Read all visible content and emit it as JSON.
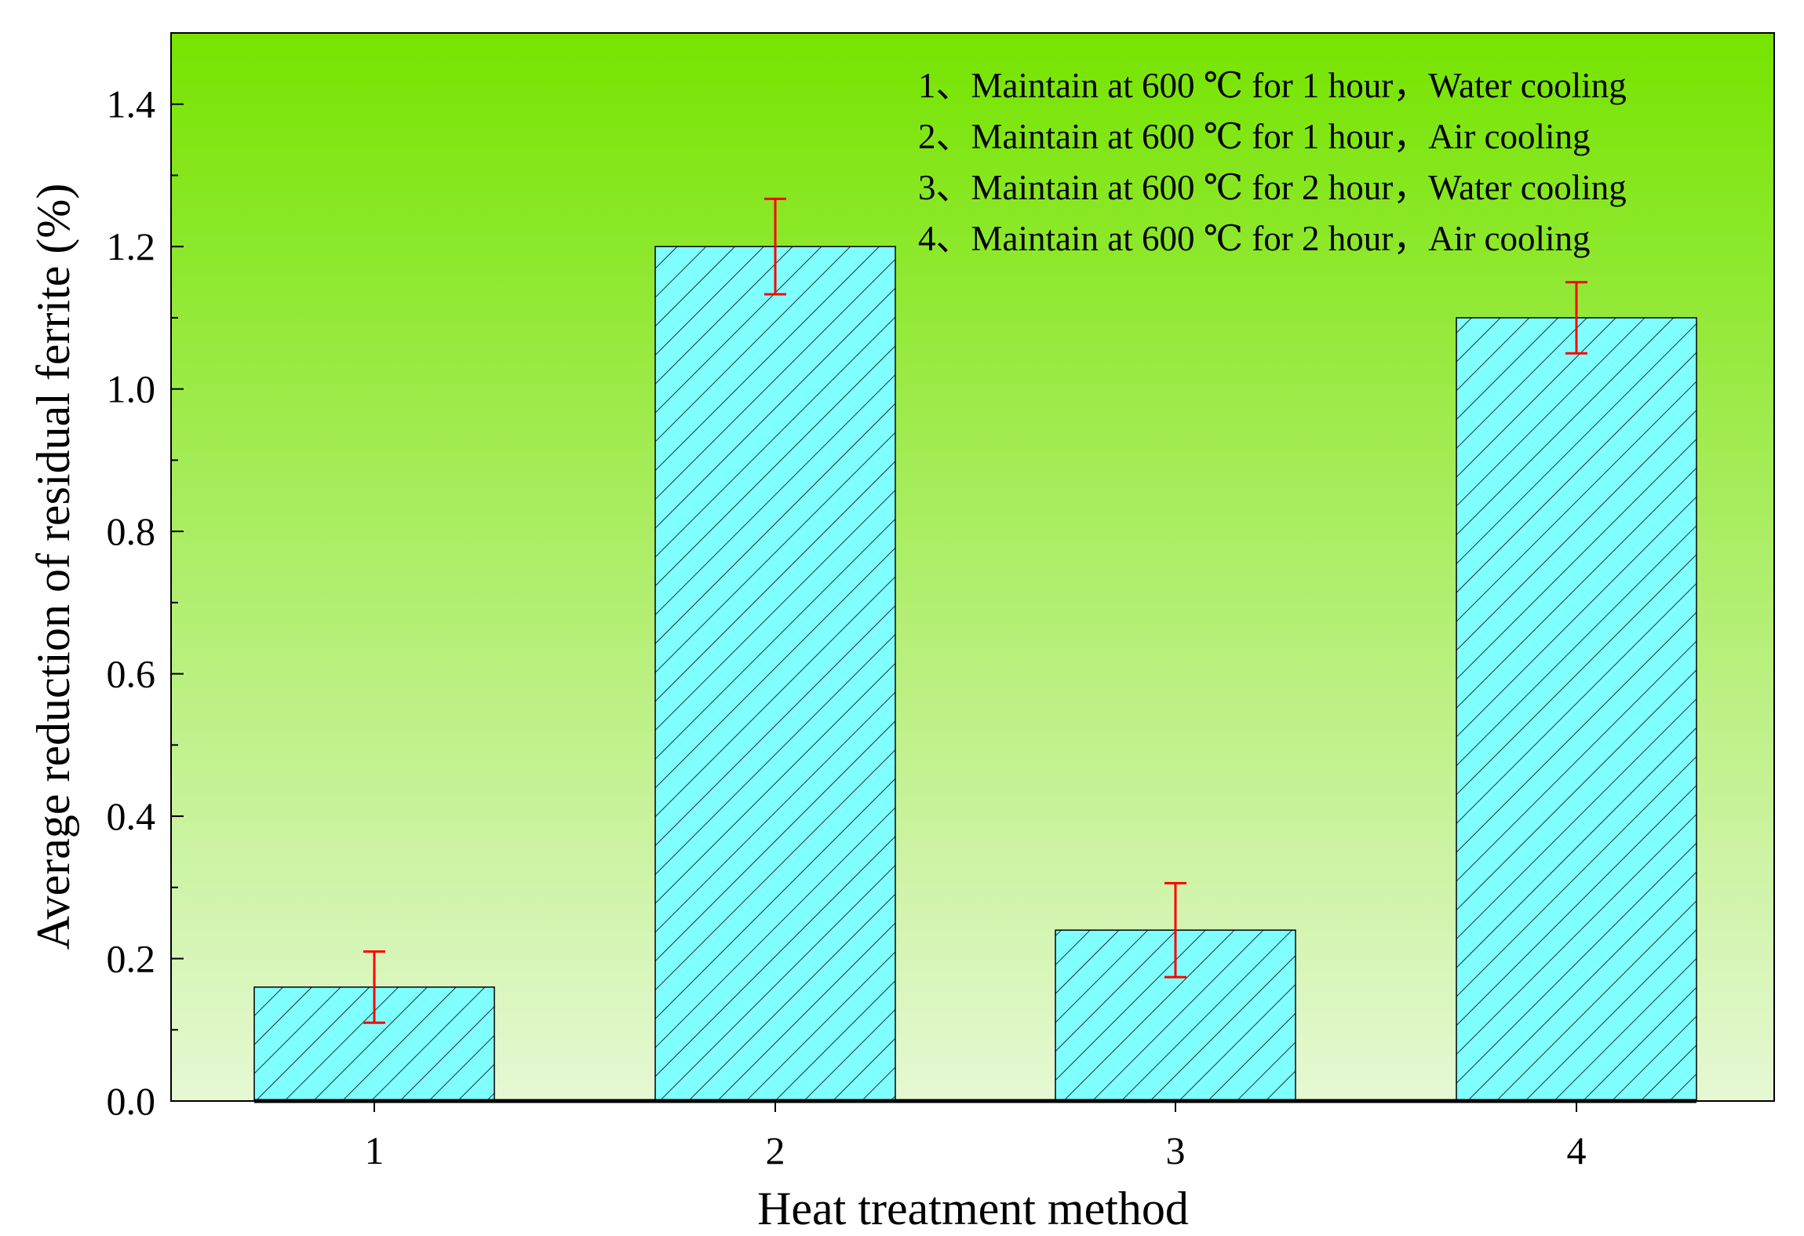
{
  "chart_data": {
    "type": "bar",
    "title": "",
    "xlabel": "Heat treatment method",
    "ylabel": "Average reduction of residual ferrite (%)",
    "categories": [
      "1",
      "2",
      "3",
      "4"
    ],
    "values": [
      0.16,
      1.2,
      0.24,
      1.1
    ],
    "errors": [
      0.05,
      0.067,
      0.066,
      0.05
    ],
    "ylim": [
      0,
      1.5
    ],
    "yticks": [
      "0.0",
      "0.2",
      "0.4",
      "0.6",
      "0.8",
      "1.0",
      "1.2",
      "1.4"
    ],
    "ytick_values": [
      0,
      0.2,
      0.4,
      0.6,
      0.8,
      1.0,
      1.2,
      1.4
    ],
    "legend": [
      "1、Maintain at 600 ℃ for 1 hour，Water cooling",
      "2、Maintain at 600 ℃ for 1 hour，Air cooling",
      "3、Maintain at 600 ℃ for 2 hour，Water cooling",
      "4、Maintain at 600 ℃ for 2 hour，Air cooling"
    ],
    "legend_position": "top-right",
    "colors": {
      "bar_fill": "#80ffff",
      "hatch": "#000000",
      "error_bar": "#ff0000",
      "bg_top": "#76e400",
      "bg_bottom": "#e6f8d4",
      "axis": "#000000"
    }
  }
}
